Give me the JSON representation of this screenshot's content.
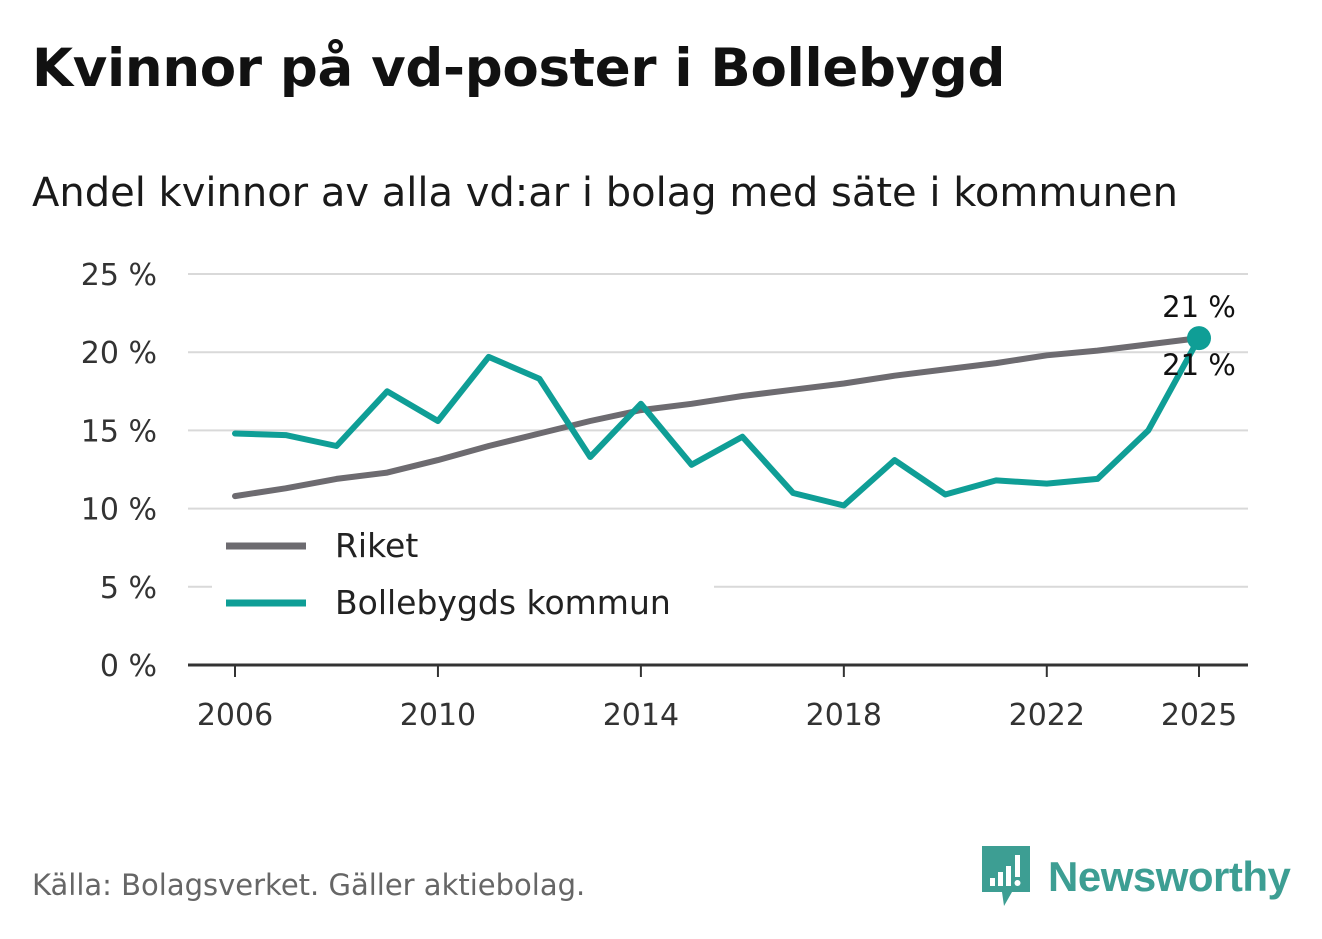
{
  "title": "Kvinnor på vd-poster i Bollebygd",
  "subtitle": "Andel kvinnor av alla vd:ar i bolag med säte i kommunen",
  "source": "Källa: Bolagsverket. Gäller aktiebolag.",
  "brand": {
    "name": "Newsworthy",
    "color": "#3d9e93",
    "icon": "newsworthy-logo-icon"
  },
  "chart_data": {
    "type": "line",
    "title": "Kvinnor på vd-poster i Bollebygd",
    "subtitle": "Andel kvinnor av alla vd:ar i bolag med säte i kommunen",
    "xlabel": "",
    "ylabel": "",
    "x": [
      2006,
      2007,
      2008,
      2009,
      2010,
      2011,
      2012,
      2013,
      2014,
      2015,
      2016,
      2017,
      2018,
      2019,
      2020,
      2021,
      2022,
      2023,
      2024,
      2025
    ],
    "x_ticks": [
      "2006",
      "2010",
      "2014",
      "2018",
      "2022",
      "2025"
    ],
    "xlim": [
      2006,
      2025
    ],
    "ylim": [
      0,
      25
    ],
    "y_ticks": [
      0,
      5,
      10,
      15,
      20,
      25
    ],
    "y_tick_labels": [
      "0 %",
      "5 %",
      "10 %",
      "15 %",
      "20 %",
      "25 %"
    ],
    "grid": true,
    "legend_position": "lower-left",
    "series": [
      {
        "name": "Riket",
        "color": "#6d6b70",
        "values": [
          10.8,
          11.3,
          11.9,
          12.3,
          13.1,
          14.0,
          14.8,
          15.6,
          16.3,
          16.7,
          17.2,
          17.6,
          18.0,
          18.5,
          18.9,
          19.3,
          19.8,
          20.1,
          20.5,
          20.9
        ],
        "end_label": "21 %"
      },
      {
        "name": "Bollebygds kommun",
        "color": "#0f9e96",
        "values": [
          14.8,
          14.7,
          14.0,
          17.5,
          15.6,
          19.7,
          18.3,
          13.3,
          16.7,
          12.8,
          14.6,
          11.0,
          10.2,
          13.1,
          10.9,
          11.8,
          11.6,
          11.9,
          15.0,
          20.9
        ],
        "end_label": "21 %"
      }
    ]
  }
}
